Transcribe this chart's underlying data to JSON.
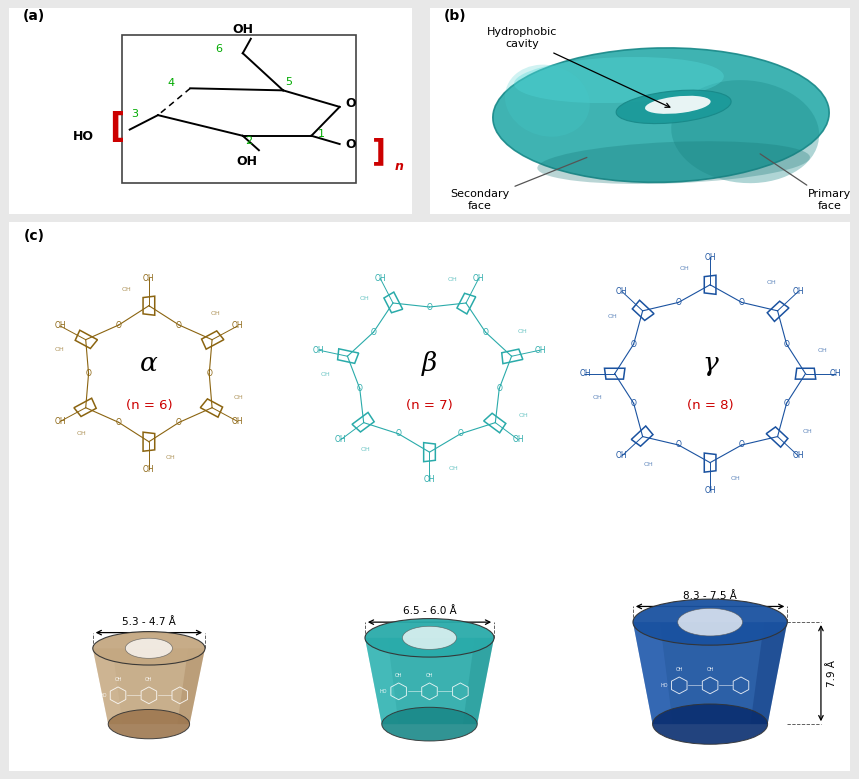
{
  "fig_width": 8.59,
  "fig_height": 7.79,
  "bg_color": "#e8e8e8",
  "panel_bg": "#ffffff",
  "label_a": "(a)",
  "label_b": "(b)",
  "label_c": "(c)",
  "alpha_label": "α",
  "beta_label": "β",
  "gamma_label": "γ",
  "alpha_n": "(n = 6)",
  "beta_n": "(n = 7)",
  "gamma_n": "(n = 8)",
  "alpha_color": "#8B6410",
  "beta_color": "#2AABAA",
  "gamma_color": "#1A52A0",
  "cup_alpha_color": "#C4A882",
  "cup_beta_color": "#2AABAA",
  "cup_gamma_color": "#1A52A0",
  "teal_color": "#2AABAA",
  "dim_alpha": "5.3 - 4.7 Å",
  "dim_beta": "6.5 - 6.0 Å",
  "dim_gamma": "8.3 - 7.5 Å",
  "dim_height": "7.9 Å",
  "hydrophobic": "Hydrophobic\ncavity",
  "secondary": "Secondary\nface",
  "primary": "Primary\nface",
  "bracket_color": "#CC0000",
  "num_color_green": "#00AA00",
  "num_color_red": "#CC0000"
}
